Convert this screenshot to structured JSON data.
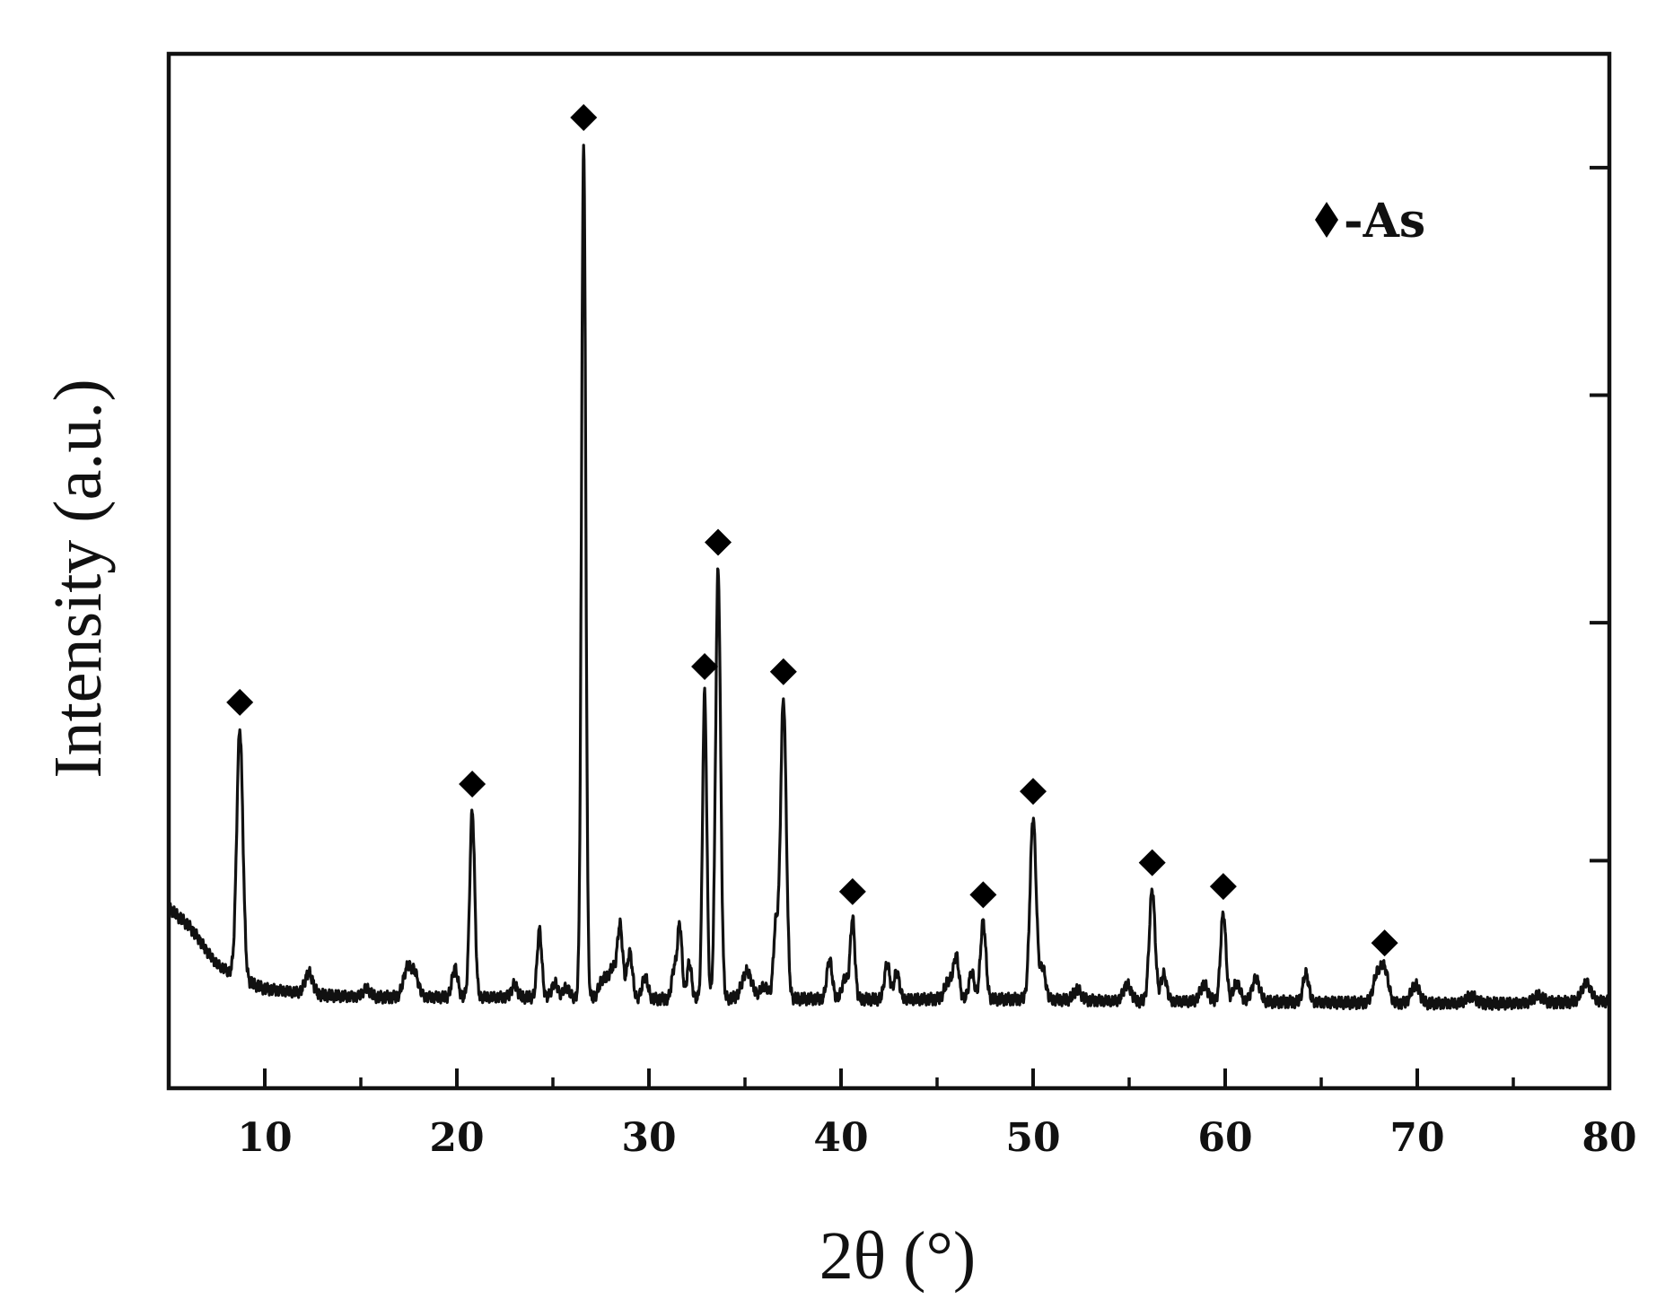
{
  "chart_data": {
    "type": "line",
    "title": "",
    "xlabel": "2θ (°)",
    "ylabel": "Intensity (a.u.)",
    "xlim": [
      5,
      80
    ],
    "ylim": [
      0,
      100
    ],
    "x_ticks": [
      10,
      20,
      30,
      40,
      50,
      60,
      70,
      80
    ],
    "x_minor_ticks": [
      15,
      25,
      35,
      45,
      55,
      65,
      75
    ],
    "y_ticks_shown_without_labels": true,
    "grid": false,
    "legend": {
      "placement": "top-right",
      "marker": "diamond",
      "label": "-As"
    },
    "baseline": [
      [
        5,
        17.5
      ],
      [
        5.5,
        16.6
      ],
      [
        6,
        15.8
      ],
      [
        6.5,
        14.6
      ],
      [
        7,
        13.2
      ],
      [
        7.5,
        12.0
      ],
      [
        8,
        11.4
      ],
      [
        9,
        10.4
      ],
      [
        10,
        9.6
      ],
      [
        11,
        9.4
      ],
      [
        13,
        9.0
      ],
      [
        15,
        8.8
      ],
      [
        20,
        8.8
      ],
      [
        25,
        8.8
      ],
      [
        30,
        8.6
      ],
      [
        35,
        8.7
      ],
      [
        40,
        8.6
      ],
      [
        45,
        8.6
      ],
      [
        50,
        8.6
      ],
      [
        55,
        8.4
      ],
      [
        60,
        8.4
      ],
      [
        65,
        8.3
      ],
      [
        70,
        8.2
      ],
      [
        75,
        8.2
      ],
      [
        80,
        8.4
      ]
    ],
    "peaks": [
      {
        "x": 8.7,
        "height": 24.0,
        "width": 0.16,
        "marked": true
      },
      {
        "x": 12.3,
        "height": 2.0,
        "width": 0.2,
        "marked": false
      },
      {
        "x": 15.3,
        "height": 0.8,
        "width": 0.2,
        "marked": false
      },
      {
        "x": 17.4,
        "height": 2.6,
        "width": 0.2,
        "marked": false
      },
      {
        "x": 17.8,
        "height": 2.2,
        "width": 0.2,
        "marked": false
      },
      {
        "x": 19.9,
        "height": 2.8,
        "width": 0.15,
        "marked": false
      },
      {
        "x": 20.8,
        "height": 18.0,
        "width": 0.13,
        "marked": true
      },
      {
        "x": 23.0,
        "height": 1.2,
        "width": 0.15,
        "marked": false
      },
      {
        "x": 24.3,
        "height": 6.5,
        "width": 0.12,
        "marked": false
      },
      {
        "x": 25.1,
        "height": 1.4,
        "width": 0.15,
        "marked": false
      },
      {
        "x": 25.7,
        "height": 1.0,
        "width": 0.15,
        "marked": false
      },
      {
        "x": 26.6,
        "height": 82.5,
        "width": 0.11,
        "marked": true
      },
      {
        "x": 27.6,
        "height": 1.8,
        "width": 0.2,
        "marked": false
      },
      {
        "x": 28.1,
        "height": 2.8,
        "width": 0.2,
        "marked": false
      },
      {
        "x": 28.5,
        "height": 6.8,
        "width": 0.14,
        "marked": false
      },
      {
        "x": 29.0,
        "height": 4.5,
        "width": 0.14,
        "marked": false
      },
      {
        "x": 29.8,
        "height": 2.2,
        "width": 0.15,
        "marked": false
      },
      {
        "x": 31.3,
        "height": 2.8,
        "width": 0.12,
        "marked": false
      },
      {
        "x": 31.6,
        "height": 7.2,
        "width": 0.12,
        "marked": false
      },
      {
        "x": 32.1,
        "height": 3.5,
        "width": 0.12,
        "marked": false
      },
      {
        "x": 32.9,
        "height": 29.5,
        "width": 0.11,
        "marked": true
      },
      {
        "x": 33.6,
        "height": 41.5,
        "width": 0.13,
        "marked": true
      },
      {
        "x": 35.1,
        "height": 2.6,
        "width": 0.25,
        "marked": false
      },
      {
        "x": 36.0,
        "height": 1.2,
        "width": 0.2,
        "marked": false
      },
      {
        "x": 36.6,
        "height": 6.8,
        "width": 0.12,
        "marked": false
      },
      {
        "x": 37.0,
        "height": 29.0,
        "width": 0.15,
        "marked": true
      },
      {
        "x": 39.4,
        "height": 3.8,
        "width": 0.14,
        "marked": false
      },
      {
        "x": 40.2,
        "height": 2.0,
        "width": 0.15,
        "marked": false
      },
      {
        "x": 40.6,
        "height": 7.8,
        "width": 0.12,
        "marked": true
      },
      {
        "x": 42.4,
        "height": 3.4,
        "width": 0.14,
        "marked": false
      },
      {
        "x": 42.9,
        "height": 2.6,
        "width": 0.14,
        "marked": false
      },
      {
        "x": 45.6,
        "height": 1.8,
        "width": 0.2,
        "marked": false
      },
      {
        "x": 46.0,
        "height": 4.0,
        "width": 0.14,
        "marked": false
      },
      {
        "x": 46.8,
        "height": 2.6,
        "width": 0.14,
        "marked": false
      },
      {
        "x": 47.4,
        "height": 7.5,
        "width": 0.14,
        "marked": true
      },
      {
        "x": 50.0,
        "height": 17.5,
        "width": 0.16,
        "marked": true
      },
      {
        "x": 50.5,
        "height": 3.0,
        "width": 0.15,
        "marked": false
      },
      {
        "x": 52.3,
        "height": 1.0,
        "width": 0.2,
        "marked": false
      },
      {
        "x": 54.9,
        "height": 1.6,
        "width": 0.2,
        "marked": false
      },
      {
        "x": 56.2,
        "height": 10.8,
        "width": 0.15,
        "marked": true
      },
      {
        "x": 56.8,
        "height": 2.6,
        "width": 0.15,
        "marked": false
      },
      {
        "x": 58.9,
        "height": 1.6,
        "width": 0.2,
        "marked": false
      },
      {
        "x": 59.9,
        "height": 8.5,
        "width": 0.14,
        "marked": true
      },
      {
        "x": 60.6,
        "height": 1.8,
        "width": 0.18,
        "marked": false
      },
      {
        "x": 61.6,
        "height": 2.2,
        "width": 0.2,
        "marked": false
      },
      {
        "x": 64.2,
        "height": 2.8,
        "width": 0.15,
        "marked": false
      },
      {
        "x": 67.9,
        "height": 2.6,
        "width": 0.2,
        "marked": false
      },
      {
        "x": 68.3,
        "height": 3.2,
        "width": 0.2,
        "marked": true
      },
      {
        "x": 69.9,
        "height": 1.8,
        "width": 0.22,
        "marked": false
      },
      {
        "x": 72.8,
        "height": 0.7,
        "width": 0.25,
        "marked": false
      },
      {
        "x": 76.3,
        "height": 0.7,
        "width": 0.25,
        "marked": false
      },
      {
        "x": 78.8,
        "height": 1.8,
        "width": 0.25,
        "marked": false
      }
    ],
    "colors": {
      "line": "#111111",
      "marker": "#000000",
      "axes": "#111111"
    }
  }
}
